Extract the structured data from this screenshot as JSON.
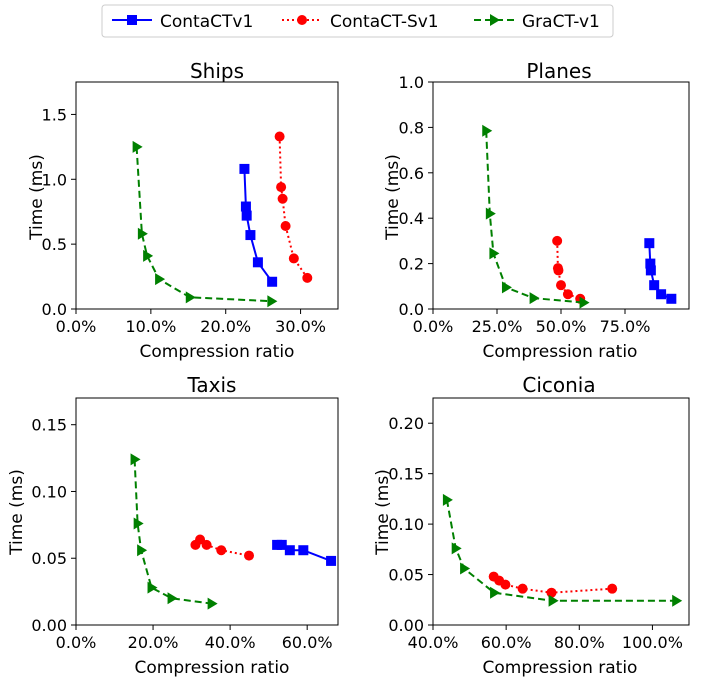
{
  "legend": {
    "placement": "top-center",
    "entries": [
      {
        "name": "ContaCTv1",
        "color": "#0000ff",
        "marker": "square",
        "line": "solid"
      },
      {
        "name": "ContaCT-Sv1",
        "color": "#ff0000",
        "marker": "circle",
        "line": "dotted"
      },
      {
        "name": "GraCT-v1",
        "color": "#008000",
        "marker": "triangle-right",
        "line": "dashed"
      }
    ]
  },
  "chart_data": [
    {
      "type": "line",
      "title": "Ships",
      "xlabel": "Compression ratio",
      "ylabel": "Time (ms)",
      "xlim": [
        0,
        35
      ],
      "ylim": [
        0,
        1.75
      ],
      "x_ticks": [
        0,
        10,
        20,
        30
      ],
      "x_tick_labels": [
        "0.0%",
        "10.0%",
        "20.0%",
        "30.0%"
      ],
      "y_ticks": [
        0,
        0.5,
        1.0,
        1.5
      ],
      "y_tick_labels": [
        "0.0",
        "0.5",
        "1.0",
        "1.5"
      ],
      "grid": false,
      "series": [
        {
          "name": "ContaCTv1",
          "x": [
            22.5,
            22.7,
            22.8,
            23.3,
            24.3,
            26.2
          ],
          "y": [
            1.08,
            0.79,
            0.72,
            0.57,
            0.36,
            0.21
          ]
        },
        {
          "name": "ContaCT-Sv1",
          "x": [
            27.2,
            27.4,
            27.6,
            28.0,
            29.1,
            30.9
          ],
          "y": [
            1.33,
            0.94,
            0.85,
            0.64,
            0.39,
            0.24
          ]
        },
        {
          "name": "GraCT-v1",
          "x": [
            8.1,
            8.8,
            9.5,
            11.1,
            15.2,
            26.1
          ],
          "y": [
            1.25,
            0.58,
            0.41,
            0.23,
            0.09,
            0.06
          ]
        }
      ]
    },
    {
      "type": "line",
      "title": "Planes",
      "xlabel": "Compression ratio",
      "ylabel": "Time (ms)",
      "xlim": [
        0,
        100
      ],
      "ylim": [
        0,
        1.0
      ],
      "x_ticks": [
        0,
        25,
        50,
        75
      ],
      "x_tick_labels": [
        "0.0%",
        "25.0%",
        "50.0%",
        "75.0%"
      ],
      "y_ticks": [
        0,
        0.2,
        0.4,
        0.6,
        0.8,
        1.0
      ],
      "y_tick_labels": [
        "0.0",
        "0.2",
        "0.4",
        "0.6",
        "0.8",
        "1.0"
      ],
      "grid": false,
      "series": [
        {
          "name": "ContaCTv1",
          "x": [
            84.5,
            84.9,
            85.1,
            86.4,
            89.1,
            93.1
          ],
          "y": [
            0.29,
            0.2,
            0.17,
            0.105,
            0.065,
            0.045
          ]
        },
        {
          "name": "ContaCT-Sv1",
          "x": [
            48.5,
            48.8,
            49.0,
            50.0,
            52.7,
            57.5
          ],
          "y": [
            0.3,
            0.18,
            0.17,
            0.105,
            0.065,
            0.045
          ]
        },
        {
          "name": "GraCT-v1",
          "x": [
            20.8,
            22.2,
            23.6,
            28.5,
            39.3,
            58.8
          ],
          "y": [
            0.785,
            0.42,
            0.245,
            0.095,
            0.048,
            0.028
          ]
        }
      ]
    },
    {
      "type": "line",
      "title": "Taxis",
      "xlabel": "Compression ratio",
      "ylabel": "Time (ms)",
      "xlim": [
        0,
        68
      ],
      "ylim": [
        0,
        0.17
      ],
      "x_ticks": [
        0,
        20,
        40,
        60
      ],
      "x_tick_labels": [
        "0.0%",
        "20.0%",
        "40.0%",
        "60.0%"
      ],
      "y_ticks": [
        0,
        0.05,
        0.1,
        0.15
      ],
      "y_tick_labels": [
        "0.00",
        "0.05",
        "0.10",
        "0.15"
      ],
      "grid": false,
      "series": [
        {
          "name": "ContaCTv1",
          "x": [
            52.2,
            53.4,
            55.5,
            59.0,
            66.2
          ],
          "y": [
            0.06,
            0.06,
            0.056,
            0.056,
            0.048
          ]
        },
        {
          "name": "ContaCT-Sv1",
          "x": [
            31.0,
            32.2,
            33.9,
            37.7,
            44.9
          ],
          "y": [
            0.06,
            0.064,
            0.06,
            0.056,
            0.052
          ]
        },
        {
          "name": "GraCT-v1",
          "x": [
            15.2,
            16.0,
            16.9,
            19.6,
            24.8,
            35.2
          ],
          "y": [
            0.124,
            0.076,
            0.056,
            0.028,
            0.02,
            0.016
          ]
        }
      ]
    },
    {
      "type": "line",
      "title": "Ciconia",
      "xlabel": "Compression ratio",
      "ylabel": "Time (ms)",
      "xlim": [
        40,
        110
      ],
      "ylim": [
        0,
        0.225
      ],
      "x_ticks": [
        40,
        60,
        80,
        100
      ],
      "x_tick_labels": [
        "40.0%",
        "60.0%",
        "80.0%",
        "100.0%"
      ],
      "y_ticks": [
        0,
        0.05,
        0.1,
        0.15,
        0.2
      ],
      "y_tick_labels": [
        "0.00",
        "0.05",
        "0.10",
        "0.15",
        "0.20"
      ],
      "grid": false,
      "series": [
        {
          "name": "ContaCT-Sv1",
          "x": [
            56.6,
            58.1,
            59.8,
            64.5,
            72.4,
            89.0
          ],
          "y": [
            0.048,
            0.044,
            0.04,
            0.036,
            0.032,
            0.036
          ]
        },
        {
          "name": "GraCT-v1",
          "x": [
            43.8,
            46.2,
            48.5,
            56.7,
            72.7,
            106.5
          ],
          "y": [
            0.124,
            0.076,
            0.056,
            0.032,
            0.024,
            0.024
          ]
        }
      ]
    }
  ]
}
